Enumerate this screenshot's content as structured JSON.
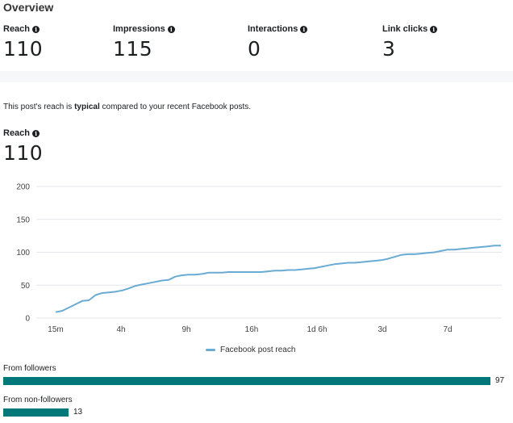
{
  "overview": {
    "title": "Overview",
    "metrics": [
      {
        "label": "Reach",
        "value": "110"
      },
      {
        "label": "Impressions",
        "value": "115"
      },
      {
        "label": "Interactions",
        "value": "0"
      },
      {
        "label": "Link clicks",
        "value": "3"
      }
    ]
  },
  "comparison": {
    "prefix": "This post's reach is",
    "emphasis": "typical",
    "suffix": "compared to your recent Facebook posts."
  },
  "reach_section": {
    "label": "Reach",
    "value": "110"
  },
  "colors": {
    "line": "#6aabd4",
    "bar": "#00787a",
    "grid": "#e4e6ea"
  },
  "chart_data": {
    "type": "line",
    "title": "",
    "xlabel": "",
    "ylabel": "",
    "ylim": [
      0,
      200
    ],
    "yticks": [
      0,
      50,
      100,
      150,
      200
    ],
    "xtick_labels": [
      "15m",
      "4h",
      "9h",
      "16h",
      "1d 6h",
      "3d",
      "7d"
    ],
    "legend": "Facebook post reach",
    "legend_position": "bottom-center",
    "series": [
      {
        "name": "Facebook post reach",
        "values": [
          9,
          11,
          16,
          21,
          26,
          27,
          35,
          38,
          39,
          40,
          42,
          45,
          49,
          51,
          53,
          55,
          57,
          58,
          63,
          65,
          66,
          66,
          67,
          69,
          69,
          69,
          70,
          70,
          70,
          70,
          70,
          70,
          71,
          72,
          72,
          73,
          73,
          74,
          75,
          76,
          78,
          80,
          82,
          83,
          84,
          84,
          85,
          86,
          87,
          88,
          90,
          93,
          96,
          97,
          97,
          98,
          99,
          100,
          102,
          104,
          104,
          105,
          106,
          107,
          108,
          109,
          110,
          110
        ]
      }
    ]
  },
  "breakdown": {
    "max": 100,
    "items": [
      {
        "label": "From followers",
        "value": 97
      },
      {
        "label": "From non-followers",
        "value": 13
      }
    ]
  }
}
